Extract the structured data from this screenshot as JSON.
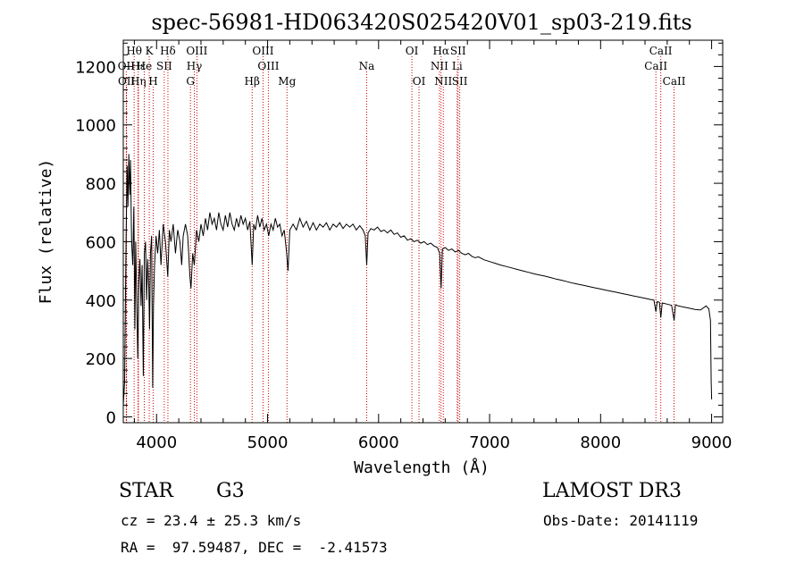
{
  "chart_data": {
    "type": "line",
    "title": "spec-56981-HD063420S025420V01_sp03-219.fits",
    "xlabel": "Wavelength (Å)",
    "ylabel": "Flux (relative)",
    "xlim": [
      3700,
      9100
    ],
    "ylim": [
      -20,
      1290
    ],
    "xticks": [
      4000,
      5000,
      6000,
      7000,
      8000,
      9000
    ],
    "yticks": [
      0,
      200,
      400,
      600,
      800,
      1000,
      1200
    ],
    "grid": false,
    "series": [
      {
        "name": "flux",
        "points": [
          [
            3700,
            40
          ],
          [
            3712,
            120
          ],
          [
            3725,
            600
          ],
          [
            3735,
            860
          ],
          [
            3742,
            720
          ],
          [
            3750,
            900
          ],
          [
            3758,
            760
          ],
          [
            3765,
            880
          ],
          [
            3775,
            600
          ],
          [
            3785,
            520
          ],
          [
            3795,
            720
          ],
          [
            3805,
            300
          ],
          [
            3812,
            600
          ],
          [
            3820,
            430
          ],
          [
            3830,
            200
          ],
          [
            3840,
            460
          ],
          [
            3850,
            540
          ],
          [
            3860,
            380
          ],
          [
            3870,
            520
          ],
          [
            3880,
            140
          ],
          [
            3890,
            560
          ],
          [
            3900,
            600
          ],
          [
            3910,
            400
          ],
          [
            3920,
            540
          ],
          [
            3930,
            440
          ],
          [
            3937,
            300
          ],
          [
            3945,
            560
          ],
          [
            3955,
            620
          ],
          [
            3965,
            100
          ],
          [
            3972,
            380
          ],
          [
            3982,
            520
          ],
          [
            3995,
            620
          ],
          [
            4010,
            560
          ],
          [
            4025,
            640
          ],
          [
            4040,
            520
          ],
          [
            4060,
            660
          ],
          [
            4080,
            600
          ],
          [
            4101,
            480
          ],
          [
            4115,
            640
          ],
          [
            4130,
            600
          ],
          [
            4150,
            660
          ],
          [
            4170,
            560
          ],
          [
            4190,
            640
          ],
          [
            4210,
            600
          ],
          [
            4226,
            520
          ],
          [
            4240,
            620
          ],
          [
            4260,
            660
          ],
          [
            4280,
            620
          ],
          [
            4300,
            480
          ],
          [
            4310,
            440
          ],
          [
            4325,
            560
          ],
          [
            4340,
            520
          ],
          [
            4360,
            640
          ],
          [
            4380,
            600
          ],
          [
            4400,
            660
          ],
          [
            4420,
            620
          ],
          [
            4440,
            680
          ],
          [
            4460,
            640
          ],
          [
            4480,
            700
          ],
          [
            4500,
            660
          ],
          [
            4520,
            680
          ],
          [
            4540,
            640
          ],
          [
            4560,
            700
          ],
          [
            4580,
            660
          ],
          [
            4600,
            640
          ],
          [
            4620,
            690
          ],
          [
            4640,
            650
          ],
          [
            4660,
            700
          ],
          [
            4680,
            660
          ],
          [
            4700,
            640
          ],
          [
            4720,
            680
          ],
          [
            4740,
            650
          ],
          [
            4760,
            690
          ],
          [
            4780,
            660
          ],
          [
            4800,
            680
          ],
          [
            4820,
            640
          ],
          [
            4840,
            670
          ],
          [
            4861,
            520
          ],
          [
            4875,
            660
          ],
          [
            4890,
            640
          ],
          [
            4910,
            690
          ],
          [
            4930,
            650
          ],
          [
            4950,
            680
          ],
          [
            4970,
            640
          ],
          [
            4990,
            660
          ],
          [
            5010,
            620
          ],
          [
            5030,
            660
          ],
          [
            5050,
            640
          ],
          [
            5070,
            680
          ],
          [
            5090,
            650
          ],
          [
            5110,
            660
          ],
          [
            5130,
            620
          ],
          [
            5150,
            640
          ],
          [
            5172,
            560
          ],
          [
            5184,
            500
          ],
          [
            5200,
            640
          ],
          [
            5230,
            660
          ],
          [
            5260,
            640
          ],
          [
            5290,
            680
          ],
          [
            5320,
            650
          ],
          [
            5350,
            670
          ],
          [
            5380,
            640
          ],
          [
            5410,
            665
          ],
          [
            5440,
            640
          ],
          [
            5470,
            660
          ],
          [
            5500,
            650
          ],
          [
            5530,
            665
          ],
          [
            5560,
            640
          ],
          [
            5590,
            660
          ],
          [
            5620,
            650
          ],
          [
            5650,
            665
          ],
          [
            5680,
            645
          ],
          [
            5710,
            660
          ],
          [
            5740,
            650
          ],
          [
            5770,
            660
          ],
          [
            5800,
            640
          ],
          [
            5830,
            655
          ],
          [
            5860,
            640
          ],
          [
            5880,
            620
          ],
          [
            5893,
            520
          ],
          [
            5905,
            630
          ],
          [
            5930,
            645
          ],
          [
            5960,
            640
          ],
          [
            5990,
            650
          ],
          [
            6020,
            635
          ],
          [
            6050,
            640
          ],
          [
            6080,
            630
          ],
          [
            6110,
            640
          ],
          [
            6140,
            625
          ],
          [
            6170,
            630
          ],
          [
            6200,
            615
          ],
          [
            6230,
            620
          ],
          [
            6260,
            605
          ],
          [
            6290,
            610
          ],
          [
            6320,
            600
          ],
          [
            6350,
            605
          ],
          [
            6380,
            595
          ],
          [
            6410,
            600
          ],
          [
            6440,
            590
          ],
          [
            6470,
            595
          ],
          [
            6500,
            585
          ],
          [
            6530,
            580
          ],
          [
            6550,
            560
          ],
          [
            6563,
            440
          ],
          [
            6575,
            575
          ],
          [
            6600,
            580
          ],
          [
            6630,
            570
          ],
          [
            6660,
            575
          ],
          [
            6690,
            565
          ],
          [
            6720,
            570
          ],
          [
            6750,
            560
          ],
          [
            6780,
            555
          ],
          [
            6810,
            560
          ],
          [
            6840,
            550
          ],
          [
            6870,
            545
          ],
          [
            6900,
            548
          ],
          [
            6950,
            538
          ],
          [
            7000,
            532
          ],
          [
            7050,
            526
          ],
          [
            7100,
            520
          ],
          [
            7150,
            515
          ],
          [
            7200,
            510
          ],
          [
            7250,
            505
          ],
          [
            7300,
            500
          ],
          [
            7350,
            495
          ],
          [
            7400,
            490
          ],
          [
            7450,
            486
          ],
          [
            7500,
            482
          ],
          [
            7550,
            477
          ],
          [
            7600,
            472
          ],
          [
            7650,
            468
          ],
          [
            7700,
            463
          ],
          [
            7750,
            458
          ],
          [
            7800,
            454
          ],
          [
            7850,
            450
          ],
          [
            7900,
            446
          ],
          [
            7950,
            442
          ],
          [
            8000,
            438
          ],
          [
            8050,
            434
          ],
          [
            8100,
            430
          ],
          [
            8150,
            426
          ],
          [
            8200,
            422
          ],
          [
            8250,
            418
          ],
          [
            8300,
            414
          ],
          [
            8350,
            410
          ],
          [
            8400,
            406
          ],
          [
            8450,
            402
          ],
          [
            8480,
            400
          ],
          [
            8498,
            360
          ],
          [
            8510,
            395
          ],
          [
            8530,
            392
          ],
          [
            8542,
            340
          ],
          [
            8555,
            390
          ],
          [
            8580,
            388
          ],
          [
            8610,
            385
          ],
          [
            8640,
            382
          ],
          [
            8662,
            330
          ],
          [
            8675,
            384
          ],
          [
            8700,
            380
          ],
          [
            8750,
            376
          ],
          [
            8800,
            372
          ],
          [
            8850,
            368
          ],
          [
            8900,
            366
          ],
          [
            8950,
            380
          ],
          [
            8975,
            370
          ],
          [
            8990,
            330
          ],
          [
            8996,
            120
          ],
          [
            9000,
            60
          ]
        ]
      }
    ],
    "lines": [
      {
        "name": "Hθ",
        "x": 3798,
        "row": 0
      },
      {
        "name": "K",
        "x": 3934,
        "row": 0
      },
      {
        "name": "Hδ",
        "x": 4102,
        "row": 0
      },
      {
        "name": "OIII",
        "x": 4363,
        "row": 0
      },
      {
        "name": "OIII",
        "x": 4959,
        "row": 0
      },
      {
        "name": "OI",
        "x": 6300,
        "row": 0
      },
      {
        "name": "Hα",
        "x": 6563,
        "row": 0
      },
      {
        "name": "SII",
        "x": 6716,
        "row": 0
      },
      {
        "name": "CaII",
        "x": 8542,
        "row": 0
      },
      {
        "name": "OII",
        "x": 3727,
        "row": 1
      },
      {
        "name": "Hε",
        "x": 3835,
        "row": 1
      },
      {
        "name": "He",
        "x": 3889,
        "row": 1
      },
      {
        "name": "SII",
        "x": 4069,
        "row": 1
      },
      {
        "name": "Hγ",
        "x": 4340,
        "row": 1
      },
      {
        "name": "OIII",
        "x": 5007,
        "row": 1
      },
      {
        "name": "Na",
        "x": 5893,
        "row": 1
      },
      {
        "name": "NII",
        "x": 6548,
        "row": 1
      },
      {
        "name": "Li",
        "x": 6708,
        "row": 1
      },
      {
        "name": "CaII",
        "x": 8498,
        "row": 1
      },
      {
        "name": "OII",
        "x": 3729,
        "row": 2
      },
      {
        "name": "Hη",
        "x": 3835,
        "row": 2
      },
      {
        "name": "H",
        "x": 3969,
        "row": 2
      },
      {
        "name": "G",
        "x": 4305,
        "row": 2
      },
      {
        "name": "Hβ",
        "x": 4861,
        "row": 2
      },
      {
        "name": "Mg",
        "x": 5175,
        "row": 2
      },
      {
        "name": "OI",
        "x": 6364,
        "row": 2
      },
      {
        "name": "NII",
        "x": 6583,
        "row": 2
      },
      {
        "name": "SII",
        "x": 6731,
        "row": 2
      },
      {
        "name": "CaII",
        "x": 8662,
        "row": 2
      }
    ]
  },
  "info": {
    "object_class": "STAR",
    "subclass": "G3",
    "survey": "LAMOST DR3",
    "redshift_text": "cz = 23.4 ± 25.3 km/s",
    "obs_date_text": "Obs-Date: 20141119",
    "coords_text": "RA =  97.59487, DEC =  -2.41573"
  },
  "colors": {
    "line_marker": "#cc0000",
    "spectrum": "#000000"
  }
}
